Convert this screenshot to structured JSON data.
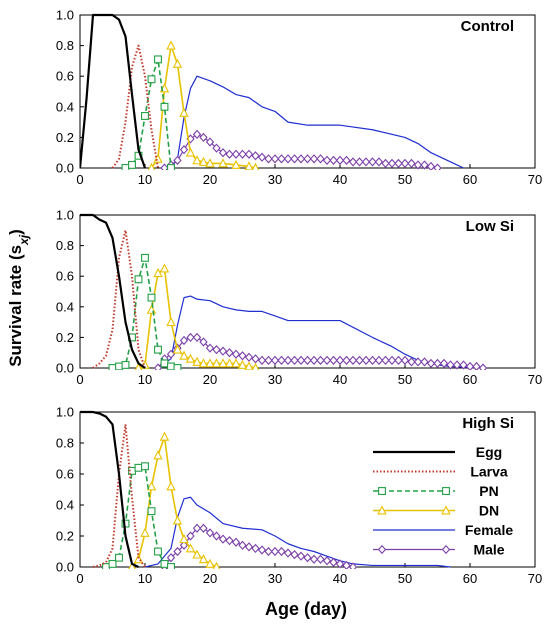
{
  "figure": {
    "ylabel": "Survival rate",
    "ylabel_subscript": "xj",
    "xlabel": "Age (day)"
  },
  "legend": {
    "placement": "panel 3, right",
    "items": [
      {
        "label": "Egg",
        "key": "egg"
      },
      {
        "label": "Larva",
        "key": "larva"
      },
      {
        "label": "PN",
        "key": "pn"
      },
      {
        "label": "DN",
        "key": "dn"
      },
      {
        "label": "Female",
        "key": "female"
      },
      {
        "label": "Male",
        "key": "male"
      }
    ]
  },
  "styles": {
    "egg": {
      "color": "#000000",
      "dash": "",
      "width": 2.2,
      "marker": "none"
    },
    "larva": {
      "color": "#c0392b",
      "dash": "1.5,2",
      "width": 2,
      "marker": "none"
    },
    "pn": {
      "color": "#22a045",
      "dash": "5,3",
      "width": 1.6,
      "marker": "square"
    },
    "dn": {
      "color": "#e8c100",
      "dash": "",
      "width": 1.6,
      "marker": "triangle"
    },
    "female": {
      "color": "#1f2fd0",
      "dash": "",
      "width": 1.2,
      "marker": "none"
    },
    "male": {
      "color": "#7b3fa8",
      "dash": "",
      "width": 1.2,
      "marker": "diamond"
    }
  },
  "chart_data": [
    {
      "type": "line",
      "title": "Control",
      "xlim": [
        0,
        70
      ],
      "ylim": [
        0,
        1.0
      ],
      "xticks": [
        0,
        10,
        20,
        30,
        40,
        50,
        60,
        70
      ],
      "yticks": [
        0.0,
        0.2,
        0.4,
        0.6,
        0.8,
        1.0
      ],
      "ytick_labels": [
        "0.0",
        "0.2",
        "0.4",
        "0.6",
        "0.8",
        "1.0"
      ],
      "series": [
        {
          "key": "egg",
          "x": [
            0,
            1,
            2,
            3,
            4,
            5,
            6,
            7,
            8,
            9,
            10
          ],
          "y": [
            0,
            0.45,
            1.0,
            1.0,
            1.0,
            1.0,
            0.97,
            0.86,
            0.48,
            0.12,
            0
          ]
        },
        {
          "key": "larva",
          "x": [
            5,
            6,
            7,
            8,
            9,
            10,
            11,
            12
          ],
          "y": [
            0,
            0.06,
            0.3,
            0.66,
            0.8,
            0.6,
            0.25,
            0
          ]
        },
        {
          "key": "pn",
          "x": [
            7,
            8,
            9,
            10,
            11,
            12,
            13,
            14
          ],
          "y": [
            0,
            0.02,
            0.08,
            0.34,
            0.58,
            0.71,
            0.4,
            0
          ]
        },
        {
          "key": "dn",
          "x": [
            11,
            12,
            13,
            14,
            15,
            16,
            17,
            18,
            19,
            20,
            22,
            24,
            26,
            27
          ],
          "y": [
            0,
            0.06,
            0.52,
            0.8,
            0.68,
            0.36,
            0.1,
            0.05,
            0.04,
            0.03,
            0.03,
            0.02,
            0.01,
            0
          ]
        },
        {
          "key": "female",
          "x": [
            14,
            15,
            16,
            17,
            18,
            20,
            22,
            24,
            26,
            28,
            30,
            32,
            35,
            40,
            45,
            50,
            52,
            54,
            56,
            58,
            59
          ],
          "y": [
            0,
            0.06,
            0.33,
            0.52,
            0.6,
            0.57,
            0.53,
            0.48,
            0.46,
            0.4,
            0.37,
            0.3,
            0.28,
            0.28,
            0.25,
            0.2,
            0.16,
            0.1,
            0.06,
            0.02,
            0
          ]
        },
        {
          "key": "male",
          "x": [
            13,
            14,
            15,
            16,
            17,
            18,
            19,
            20,
            21,
            22,
            23,
            24,
            25,
            26,
            27,
            28,
            29,
            30,
            31,
            32,
            33,
            34,
            35,
            36,
            37,
            38,
            39,
            40,
            41,
            42,
            43,
            44,
            45,
            46,
            47,
            48,
            49,
            50,
            51,
            52,
            53,
            54,
            55
          ],
          "y": [
            0,
            0.02,
            0.05,
            0.12,
            0.19,
            0.22,
            0.2,
            0.17,
            0.13,
            0.1,
            0.09,
            0.09,
            0.09,
            0.09,
            0.08,
            0.07,
            0.06,
            0.06,
            0.06,
            0.06,
            0.06,
            0.06,
            0.06,
            0.06,
            0.06,
            0.05,
            0.05,
            0.05,
            0.05,
            0.04,
            0.04,
            0.04,
            0.04,
            0.04,
            0.03,
            0.03,
            0.03,
            0.03,
            0.03,
            0.02,
            0.02,
            0.01,
            0
          ]
        }
      ]
    },
    {
      "type": "line",
      "title": "Low Si",
      "xlim": [
        0,
        70
      ],
      "ylim": [
        0,
        1.0
      ],
      "xticks": [
        0,
        10,
        20,
        30,
        40,
        50,
        60,
        70
      ],
      "yticks": [
        0.0,
        0.2,
        0.4,
        0.6,
        0.8,
        1.0
      ],
      "ytick_labels": [
        "0.0",
        "0.2",
        "0.4",
        "0.6",
        "0.8",
        "1.0"
      ],
      "series": [
        {
          "key": "egg",
          "x": [
            0,
            1,
            2,
            3,
            4,
            5,
            6,
            7,
            8,
            9,
            10
          ],
          "y": [
            1.0,
            1.0,
            1.0,
            0.97,
            0.95,
            0.85,
            0.6,
            0.3,
            0.12,
            0.03,
            0
          ]
        },
        {
          "key": "larva",
          "x": [
            2,
            3,
            4,
            5,
            6,
            7,
            8,
            9,
            10
          ],
          "y": [
            0,
            0.03,
            0.08,
            0.25,
            0.72,
            0.9,
            0.6,
            0.12,
            0
          ]
        },
        {
          "key": "pn",
          "x": [
            5,
            6,
            7,
            8,
            9,
            10,
            11,
            12,
            13,
            14,
            15
          ],
          "y": [
            0,
            0.01,
            0.02,
            0.2,
            0.58,
            0.72,
            0.46,
            0.12,
            0.03,
            0.01,
            0
          ]
        },
        {
          "key": "dn",
          "x": [
            9,
            10,
            11,
            12,
            13,
            14,
            15,
            16,
            17,
            18,
            19,
            20,
            21,
            22,
            23,
            24,
            25,
            26,
            27
          ],
          "y": [
            0,
            0.02,
            0.38,
            0.62,
            0.65,
            0.3,
            0.12,
            0.08,
            0.06,
            0.04,
            0.03,
            0.03,
            0.03,
            0.03,
            0.03,
            0.03,
            0.02,
            0.01,
            0
          ]
        },
        {
          "key": "female",
          "x": [
            12,
            14,
            15,
            16,
            17,
            18,
            20,
            22,
            24,
            26,
            28,
            30,
            32,
            35,
            40,
            45,
            48,
            50,
            52,
            55,
            57,
            62
          ],
          "y": [
            0,
            0.06,
            0.28,
            0.46,
            0.47,
            0.45,
            0.44,
            0.4,
            0.38,
            0.37,
            0.37,
            0.34,
            0.31,
            0.31,
            0.31,
            0.2,
            0.14,
            0.09,
            0.05,
            0.02,
            0.01,
            0
          ]
        },
        {
          "key": "male",
          "x": [
            12,
            13,
            14,
            15,
            16,
            17,
            18,
            19,
            20,
            21,
            22,
            23,
            24,
            25,
            26,
            27,
            28,
            29,
            30,
            31,
            32,
            33,
            34,
            35,
            36,
            37,
            38,
            39,
            40,
            41,
            42,
            43,
            44,
            45,
            46,
            47,
            48,
            49,
            50,
            51,
            52,
            53,
            54,
            55,
            56,
            57,
            58,
            59,
            60,
            61,
            62
          ],
          "y": [
            0,
            0.06,
            0.09,
            0.13,
            0.18,
            0.2,
            0.2,
            0.17,
            0.13,
            0.12,
            0.11,
            0.1,
            0.09,
            0.08,
            0.07,
            0.06,
            0.05,
            0.05,
            0.05,
            0.05,
            0.05,
            0.05,
            0.05,
            0.05,
            0.05,
            0.05,
            0.05,
            0.05,
            0.05,
            0.05,
            0.05,
            0.05,
            0.05,
            0.05,
            0.05,
            0.05,
            0.05,
            0.05,
            0.05,
            0.04,
            0.04,
            0.04,
            0.03,
            0.03,
            0.03,
            0.02,
            0.02,
            0.02,
            0.01,
            0.01,
            0
          ]
        }
      ]
    },
    {
      "type": "line",
      "title": "High Si",
      "xlim": [
        0,
        70
      ],
      "ylim": [
        0,
        1.0
      ],
      "xticks": [
        0,
        10,
        20,
        30,
        40,
        50,
        60,
        70
      ],
      "yticks": [
        0.0,
        0.2,
        0.4,
        0.6,
        0.8,
        1.0
      ],
      "ytick_labels": [
        "0.0",
        "0.2",
        "0.4",
        "0.6",
        "0.8",
        "1.0"
      ],
      "series": [
        {
          "key": "egg",
          "x": [
            0,
            1,
            2,
            3,
            4,
            5,
            6,
            7,
            8,
            9
          ],
          "y": [
            1.0,
            1.0,
            1.0,
            0.99,
            0.97,
            0.92,
            0.6,
            0.2,
            0.02,
            0
          ]
        },
        {
          "key": "larva",
          "x": [
            2,
            3,
            4,
            5,
            6,
            7,
            8,
            9,
            10
          ],
          "y": [
            0,
            0.01,
            0.03,
            0.12,
            0.6,
            0.92,
            0.45,
            0.06,
            0
          ]
        },
        {
          "key": "pn",
          "x": [
            4,
            5,
            6,
            7,
            8,
            9,
            10,
            11,
            12,
            13,
            14
          ],
          "y": [
            0,
            0.02,
            0.06,
            0.28,
            0.62,
            0.64,
            0.65,
            0.36,
            0.1,
            0.02,
            0
          ]
        },
        {
          "key": "dn",
          "x": [
            8,
            9,
            10,
            11,
            12,
            13,
            14,
            15,
            16,
            17,
            18,
            19,
            20,
            21
          ],
          "y": [
            0,
            0.05,
            0.22,
            0.52,
            0.72,
            0.84,
            0.52,
            0.3,
            0.18,
            0.12,
            0.08,
            0.05,
            0.02,
            0
          ]
        },
        {
          "key": "female",
          "x": [
            10,
            12,
            14,
            15,
            16,
            17,
            18,
            20,
            22,
            25,
            28,
            30,
            32,
            34,
            36,
            38,
            40,
            42,
            45,
            50,
            55,
            57
          ],
          "y": [
            0,
            0.02,
            0.12,
            0.32,
            0.44,
            0.45,
            0.4,
            0.35,
            0.28,
            0.25,
            0.24,
            0.2,
            0.15,
            0.12,
            0.1,
            0.07,
            0.04,
            0.02,
            0.01,
            0.01,
            0.01,
            0
          ]
        },
        {
          "key": "male",
          "x": [
            13,
            14,
            15,
            16,
            17,
            18,
            19,
            20,
            21,
            22,
            23,
            24,
            25,
            26,
            27,
            28,
            29,
            30,
            31,
            32,
            33,
            34,
            35,
            36,
            37,
            38,
            39,
            40,
            41,
            42
          ],
          "y": [
            0,
            0.06,
            0.1,
            0.14,
            0.2,
            0.25,
            0.25,
            0.22,
            0.2,
            0.18,
            0.17,
            0.16,
            0.14,
            0.13,
            0.12,
            0.11,
            0.1,
            0.1,
            0.1,
            0.09,
            0.08,
            0.07,
            0.06,
            0.05,
            0.05,
            0.04,
            0.03,
            0.02,
            0.01,
            0
          ]
        }
      ]
    }
  ]
}
